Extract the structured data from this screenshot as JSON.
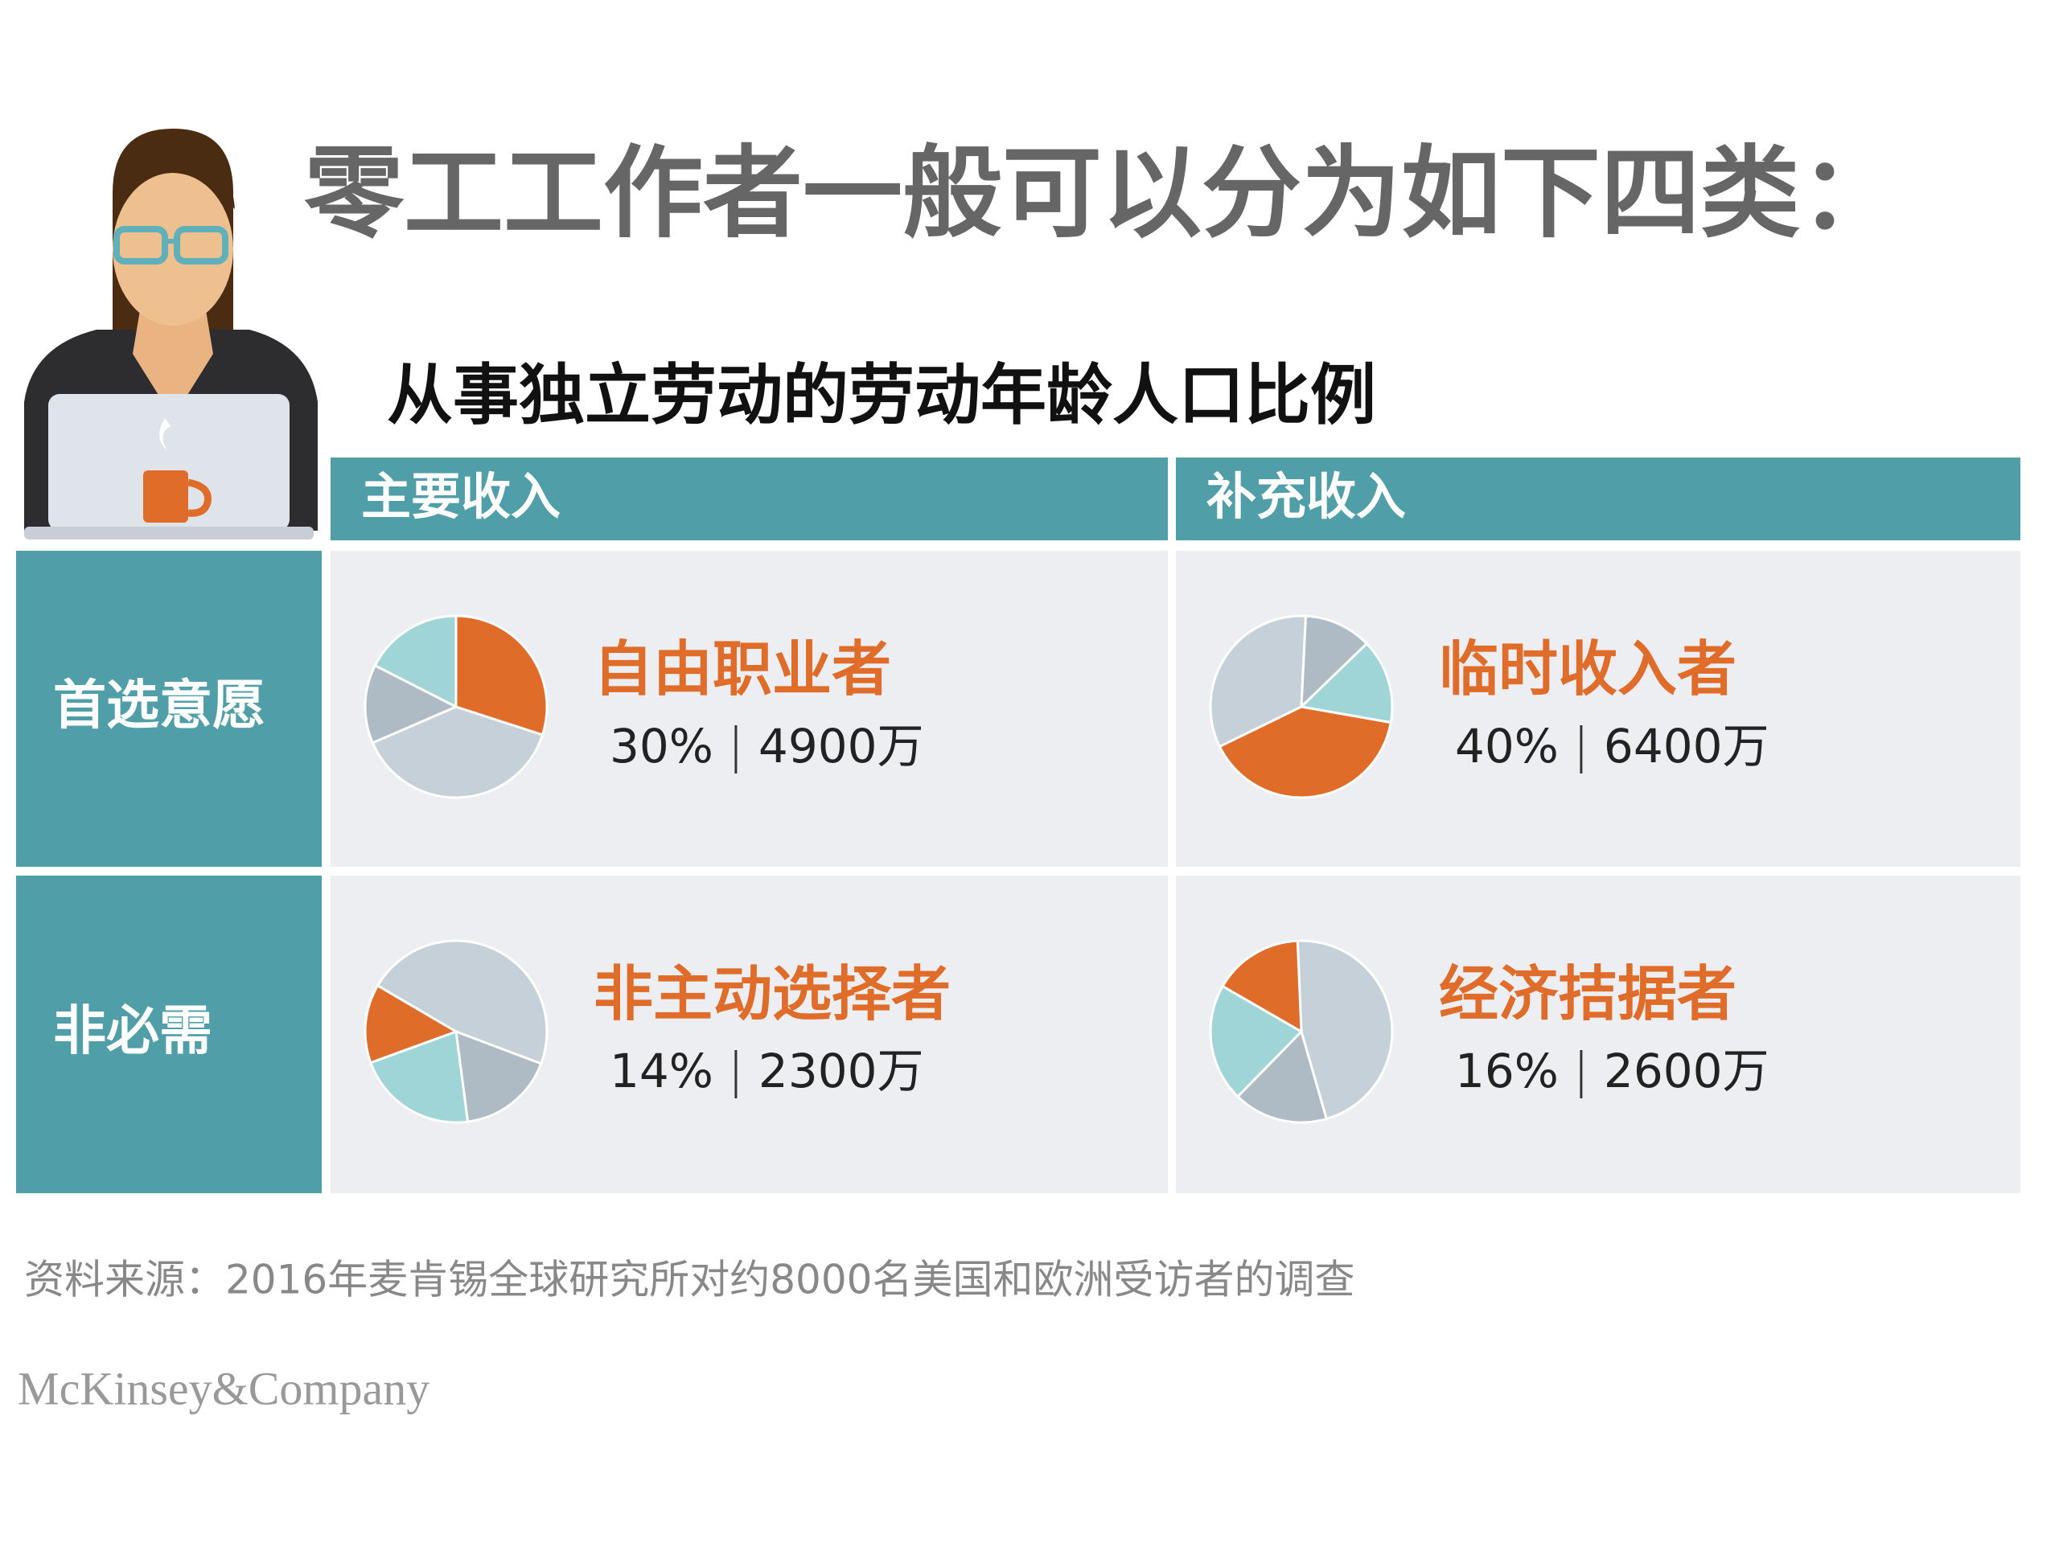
{
  "header": {
    "title": "零工工作者一般可以分为如下四类：",
    "subtitle": "从事独立劳动的劳动年龄人口比例"
  },
  "table": {
    "columns": [
      "主要收入",
      "补充收入"
    ],
    "rows": [
      "首选意愿",
      "非必需"
    ],
    "cells": [
      [
        {
          "label": "自由职业者",
          "percent": 30,
          "percent_label": "30%",
          "count": "4900万"
        },
        {
          "label": "临时收入者",
          "percent": 40,
          "percent_label": "40%",
          "count": "6400万"
        }
      ],
      [
        {
          "label": "非主动选择者",
          "percent": 14,
          "percent_label": "14%",
          "count": "2300万"
        },
        {
          "label": "经济拮据者",
          "percent": 16,
          "percent_label": "16%",
          "count": "2600万"
        }
      ]
    ]
  },
  "footer": {
    "source": "资料来源：2016年麦肯锡全球研究所对约8000名美国和欧洲受访者的调查",
    "logo": "McKinsey&Company"
  }
}
